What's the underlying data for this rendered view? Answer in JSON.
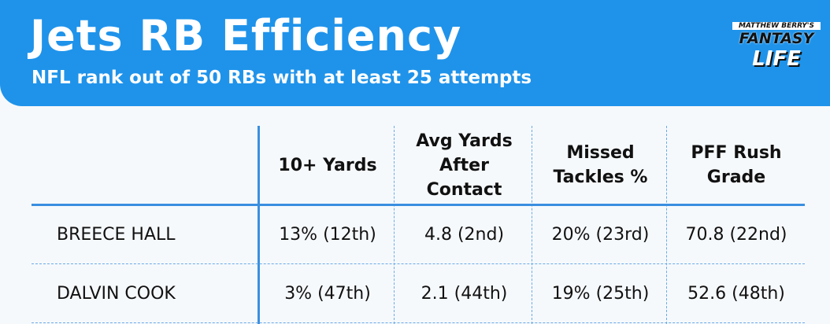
{
  "header": {
    "title": "Jets RB Efficiency",
    "subtitle": "NFL rank out of 50 RBs with at least 25 attempts"
  },
  "logo": {
    "top": "MATTHEW BERRY'S",
    "middle": "FANTASY",
    "bottom": "LIFE"
  },
  "table": {
    "columns": [
      "10+ Yards",
      "Avg Yards After Contact",
      "Missed Tackles %",
      "PFF Rush Grade"
    ],
    "rows": [
      [
        "BREECE HALL",
        "13% (12th)",
        "4.8 (2nd)",
        "20% (23rd)",
        "70.8 (22nd)"
      ],
      [
        "DALVIN COOK",
        "3% (47th)",
        "2.1 (44th)",
        "19% (25th)",
        "52.6 (48th)"
      ]
    ]
  }
}
